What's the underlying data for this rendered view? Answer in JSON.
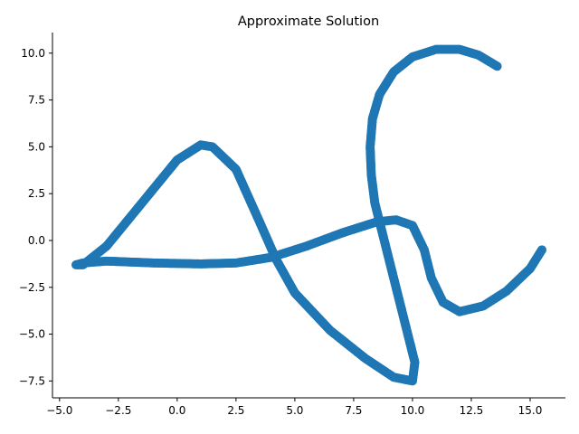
{
  "chart_data": {
    "type": "scatter",
    "title": "Approximate Solution",
    "xlabel": "",
    "ylabel": "",
    "xlim": [
      -5.3,
      16.5
    ],
    "ylim": [
      -8.4,
      11.1
    ],
    "x_ticks": [
      -5.0,
      -2.5,
      0.0,
      2.5,
      5.0,
      7.5,
      10.0,
      12.5,
      15.0
    ],
    "x_tick_labels": [
      "−5.0",
      "−2.5",
      "0.0",
      "2.5",
      "5.0",
      "7.5",
      "10.0",
      "12.5",
      "15.0"
    ],
    "y_ticks": [
      -7.5,
      -5.0,
      -2.5,
      0.0,
      2.5,
      5.0,
      7.5,
      10.0
    ],
    "y_tick_labels": [
      "−7.5",
      "−5.0",
      "−2.5",
      "0.0",
      "2.5",
      "5.0",
      "7.5",
      "10.0"
    ],
    "grid": false,
    "color": "#1f77b4",
    "series": [
      {
        "x": [
          13.6,
          12.8,
          12.0,
          11.0,
          10.0,
          9.2,
          8.6,
          8.3,
          8.2,
          8.25,
          8.4,
          8.7,
          9.1,
          9.5,
          9.9,
          10.1,
          10.0,
          9.2,
          8.0,
          6.5,
          5.0,
          4.2,
          3.5,
          2.5,
          1.5,
          1.0,
          0.0,
          -1.5,
          -3.0,
          -4.0,
          -4.3,
          -4.0,
          -3.0,
          -1.0,
          1.0,
          2.5,
          4.0,
          5.5,
          7.0,
          8.5,
          9.3,
          10.0,
          10.5,
          10.8,
          11.3,
          12.0,
          13.0,
          14.0,
          15.0,
          15.5
        ],
        "y": [
          9.3,
          9.9,
          10.2,
          10.2,
          9.8,
          9.0,
          7.8,
          6.5,
          5.0,
          3.5,
          2.0,
          0.5,
          -1.5,
          -3.5,
          -5.5,
          -6.5,
          -7.5,
          -7.3,
          -6.3,
          -4.8,
          -2.8,
          -1.0,
          1.0,
          3.8,
          5.0,
          5.1,
          4.3,
          2.0,
          -0.3,
          -1.3,
          -1.3,
          -1.2,
          -1.1,
          -1.2,
          -1.25,
          -1.2,
          -0.9,
          -0.3,
          0.4,
          1.0,
          1.1,
          0.8,
          -0.5,
          -2.0,
          -3.3,
          -3.8,
          -3.5,
          -2.7,
          -1.5,
          -0.5
        ]
      }
    ]
  }
}
